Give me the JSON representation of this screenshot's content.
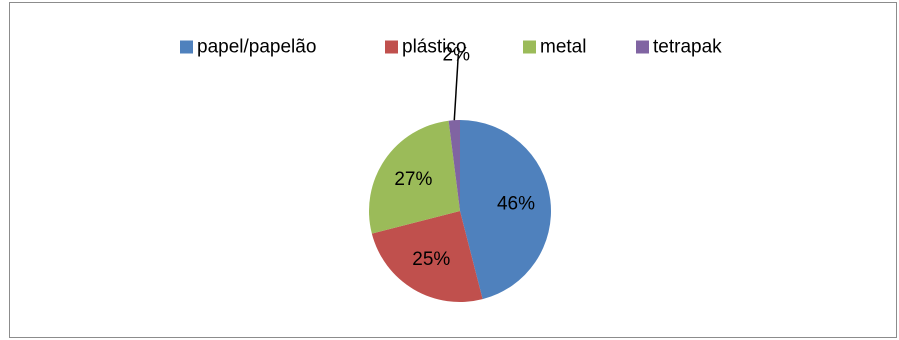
{
  "chart_data": {
    "type": "pie",
    "title": "",
    "categories": [
      "papel/papelão",
      "plástico",
      "metal",
      "tetrapak"
    ],
    "values": [
      46,
      25,
      27,
      2
    ],
    "labels": [
      "46%",
      "25%",
      "27%",
      "2%"
    ],
    "colors": [
      "#4f81bd",
      "#c0504d",
      "#9bbb59",
      "#8064a2"
    ],
    "legend_position": "top",
    "start_angle_deg": 0,
    "direction": "clockwise",
    "grid": false
  }
}
